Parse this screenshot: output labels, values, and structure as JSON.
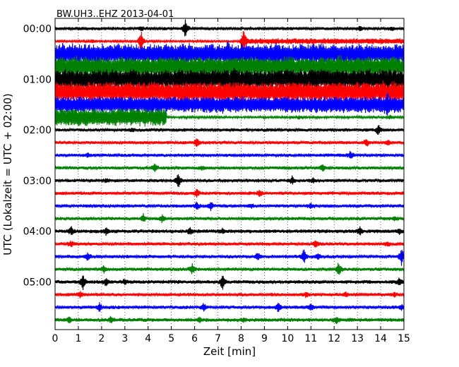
{
  "chart_data": {
    "type": "line",
    "title": "BW.UH3..EHZ 2013-04-01",
    "xlabel": "Zeit  [min]",
    "ylabel": "UTC (Lokalzeit = UTC + 02:00)",
    "xlim": [
      0,
      15
    ],
    "x_ticks": [
      "0",
      "1",
      "2",
      "3",
      "4",
      "5",
      "6",
      "7",
      "8",
      "9",
      "10",
      "11",
      "12",
      "13",
      "14",
      "15"
    ],
    "y_time_labels": [
      "00:00",
      "01:00",
      "02:00",
      "03:00",
      "04:00",
      "05:00"
    ],
    "grid": "vertical dotted at each minute",
    "trace_colors": [
      "#000000",
      "#ff0000",
      "#0000ff",
      "#008000"
    ],
    "series": [
      {
        "start": "00:00",
        "color": "#000000",
        "band_level": 0.12,
        "band_from": 0,
        "band_to": 15,
        "spikes": [
          [
            3.7,
            0.5
          ],
          [
            5.6,
            2.5
          ],
          [
            13.1,
            0.6
          ],
          [
            14.5,
            0.5
          ]
        ]
      },
      {
        "start": "00:15",
        "color": "#ff0000",
        "band_level": 0.5,
        "band_from": 8.1,
        "band_to": 15,
        "spikes": [
          [
            3.7,
            3.5
          ],
          [
            8.1,
            3.0
          ],
          [
            1.6,
            0.5
          ]
        ]
      },
      {
        "start": "00:30",
        "color": "#0000ff",
        "band_level": 2.5,
        "band_from": 0,
        "band_to": 15,
        "spikes": [
          [
            7.5,
            1.5
          ],
          [
            9.5,
            1.0
          ]
        ]
      },
      {
        "start": "00:45",
        "color": "#008000",
        "band_level": 2.5,
        "band_from": 0,
        "band_to": 15,
        "spikes": [
          [
            12.2,
            1.0
          ]
        ]
      },
      {
        "start": "01:00",
        "color": "#000000",
        "band_level": 2.5,
        "band_from": 0,
        "band_to": 15,
        "spikes": [
          [
            7.7,
            1.0
          ],
          [
            13.5,
            1.0
          ]
        ]
      },
      {
        "start": "01:15",
        "color": "#ff0000",
        "band_level": 2.5,
        "band_from": 0,
        "band_to": 15,
        "spikes": [
          [
            14.6,
            1.2
          ]
        ]
      },
      {
        "start": "01:30",
        "color": "#0000ff",
        "band_level": 2.0,
        "band_from": 0,
        "band_to": 15,
        "spikes": [
          [
            14.3,
            1.5
          ]
        ]
      },
      {
        "start": "01:45",
        "color": "#008000",
        "band_level": 2.2,
        "band_from": 0,
        "band_to": 4.8,
        "spikes": [
          [
            10.5,
            0.4
          ],
          [
            14.4,
            0.6
          ]
        ]
      },
      {
        "start": "02:00",
        "color": "#000000",
        "band_level": 0.15,
        "band_from": 0,
        "band_to": 15,
        "spikes": [
          [
            13.9,
            1.5
          ],
          [
            3.3,
            0.4
          ]
        ]
      },
      {
        "start": "02:15",
        "color": "#ff0000",
        "band_level": 0.15,
        "band_from": 0,
        "band_to": 15,
        "spikes": [
          [
            6.1,
            1.2
          ],
          [
            13.4,
            1.0
          ],
          [
            14.3,
            0.6
          ]
        ]
      },
      {
        "start": "02:30",
        "color": "#0000ff",
        "band_level": 0.15,
        "band_from": 0,
        "band_to": 15,
        "spikes": [
          [
            12.7,
            1.0
          ],
          [
            1.4,
            0.6
          ]
        ]
      },
      {
        "start": "02:45",
        "color": "#008000",
        "band_level": 0.15,
        "band_from": 0,
        "band_to": 15,
        "spikes": [
          [
            4.3,
            1.0
          ],
          [
            11.5,
            1.0
          ],
          [
            6.3,
            0.5
          ]
        ]
      },
      {
        "start": "03:00",
        "color": "#000000",
        "band_level": 0.15,
        "band_from": 0,
        "band_to": 15,
        "spikes": [
          [
            5.3,
            2.0
          ],
          [
            10.2,
            1.0
          ],
          [
            11.1,
            0.8
          ],
          [
            2.2,
            0.5
          ]
        ]
      },
      {
        "start": "03:15",
        "color": "#ff0000",
        "band_level": 0.15,
        "band_from": 0,
        "band_to": 15,
        "spikes": [
          [
            6.1,
            1.2
          ],
          [
            8.8,
            1.0
          ]
        ]
      },
      {
        "start": "03:30",
        "color": "#0000ff",
        "band_level": 0.15,
        "band_from": 0,
        "band_to": 15,
        "spikes": [
          [
            6.1,
            1.2
          ],
          [
            6.7,
            1.0
          ],
          [
            11.0,
            0.8
          ],
          [
            8.4,
            0.5
          ]
        ]
      },
      {
        "start": "03:45",
        "color": "#008000",
        "band_level": 0.15,
        "band_from": 0,
        "band_to": 15,
        "spikes": [
          [
            3.8,
            1.0
          ],
          [
            4.6,
            1.0
          ],
          [
            14.6,
            0.5
          ]
        ]
      },
      {
        "start": "04:00",
        "color": "#000000",
        "band_level": 0.2,
        "band_from": 0,
        "band_to": 15,
        "spikes": [
          [
            0.7,
            1.0
          ],
          [
            2.2,
            0.9
          ],
          [
            5.8,
            0.8
          ],
          [
            7.2,
            0.7
          ],
          [
            13.1,
            1.2
          ],
          [
            14.8,
            0.7
          ]
        ]
      },
      {
        "start": "04:15",
        "color": "#ff0000",
        "band_level": 0.15,
        "band_from": 0,
        "band_to": 15,
        "spikes": [
          [
            0.7,
            0.8
          ],
          [
            11.2,
            1.0
          ],
          [
            14.3,
            0.5
          ]
        ]
      },
      {
        "start": "04:30",
        "color": "#0000ff",
        "band_level": 0.15,
        "band_from": 0,
        "band_to": 15,
        "spikes": [
          [
            1.4,
            1.0
          ],
          [
            8.7,
            1.2
          ],
          [
            10.7,
            2.0
          ],
          [
            14.9,
            2.2
          ],
          [
            11.3,
            0.8
          ]
        ]
      },
      {
        "start": "04:45",
        "color": "#008000",
        "band_level": 0.15,
        "band_from": 0,
        "band_to": 15,
        "spikes": [
          [
            5.9,
            1.2
          ],
          [
            12.2,
            2.0
          ],
          [
            2.1,
            0.8
          ]
        ]
      },
      {
        "start": "05:00",
        "color": "#000000",
        "band_level": 0.2,
        "band_from": 0,
        "band_to": 15,
        "spikes": [
          [
            1.2,
            2.0
          ],
          [
            2.2,
            1.2
          ],
          [
            7.2,
            2.0
          ],
          [
            14.8,
            1.0
          ],
          [
            3.0,
            0.6
          ]
        ]
      },
      {
        "start": "05:15",
        "color": "#ff0000",
        "band_level": 0.15,
        "band_from": 0,
        "band_to": 15,
        "spikes": [
          [
            1.1,
            0.8
          ],
          [
            10.8,
            0.8
          ],
          [
            12.5,
            0.7
          ],
          [
            14.6,
            0.6
          ]
        ]
      },
      {
        "start": "05:30",
        "color": "#0000ff",
        "band_level": 0.15,
        "band_from": 0,
        "band_to": 15,
        "spikes": [
          [
            1.9,
            1.2
          ],
          [
            6.4,
            1.0
          ],
          [
            9.6,
            1.2
          ],
          [
            11.0,
            0.8
          ],
          [
            14.9,
            0.6
          ]
        ]
      },
      {
        "start": "05:45",
        "color": "#008000",
        "band_level": 0.2,
        "band_from": 0,
        "band_to": 15,
        "spikes": [
          [
            0.6,
            0.8
          ],
          [
            2.4,
            0.8
          ],
          [
            6.2,
            0.8
          ],
          [
            12.1,
            0.9
          ],
          [
            8.1,
            0.5
          ]
        ]
      }
    ]
  }
}
